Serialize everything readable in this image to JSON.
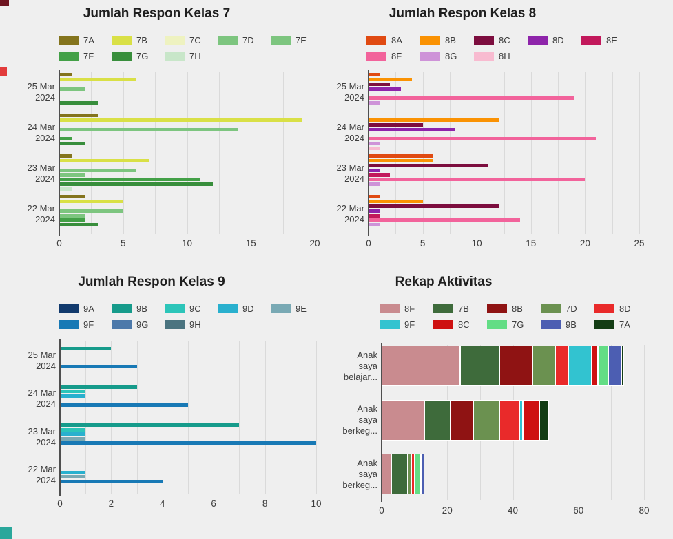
{
  "page": {
    "background": "#efefef"
  },
  "decorations": [
    {
      "name": "top-left-square",
      "color": "#6e1420"
    },
    {
      "name": "left-edge-square",
      "color": "#e23b3b"
    },
    {
      "name": "bottom-left-square",
      "color": "#2aa79b"
    }
  ],
  "chart_data": [
    {
      "id": "kelas7",
      "type": "bar",
      "orientation": "horizontal",
      "stacked": false,
      "title": "Jumlah Respon Kelas 7",
      "legend_position": "top",
      "grid": true,
      "categories": [
        "25 Mar 2024",
        "24 Mar 2024",
        "23 Mar 2024",
        "22 Mar 2024"
      ],
      "category_lines": [
        [
          "25 Mar",
          "2024"
        ],
        [
          "24 Mar",
          "2024"
        ],
        [
          "23 Mar",
          "2024"
        ],
        [
          "22 Mar",
          "2024"
        ]
      ],
      "series": [
        {
          "name": "7A",
          "color": "#84741d",
          "values": [
            1,
            3,
            1,
            2
          ]
        },
        {
          "name": "7B",
          "color": "#d9e046",
          "values": [
            6,
            19,
            7,
            5
          ]
        },
        {
          "name": "7C",
          "color": "#eef2c0",
          "values": [
            0,
            0,
            0,
            0
          ]
        },
        {
          "name": "7D",
          "color": "#7dc57f",
          "values": [
            2,
            14,
            6,
            5
          ]
        },
        {
          "name": "7E",
          "color": "#7dc57f",
          "values": [
            0,
            0,
            2,
            2
          ]
        },
        {
          "name": "7F",
          "color": "#43a047",
          "values": [
            0,
            1,
            11,
            2
          ]
        },
        {
          "name": "7G",
          "color": "#388e3c",
          "values": [
            3,
            2,
            12,
            3
          ]
        },
        {
          "name": "7H",
          "color": "#c8e6c9",
          "values": [
            0,
            0,
            1,
            0
          ]
        }
      ],
      "x_ticks": [
        0,
        5,
        10,
        15,
        20
      ],
      "x_max": 20,
      "grid_step": 2.5
    },
    {
      "id": "kelas8",
      "type": "bar",
      "orientation": "horizontal",
      "stacked": false,
      "title": "Jumlah Respon Kelas 8",
      "legend_position": "top",
      "grid": true,
      "categories": [
        "25 Mar 2024",
        "24 Mar 2024",
        "23 Mar 2024",
        "22 Mar 2024"
      ],
      "category_lines": [
        [
          "25 Mar",
          "2024"
        ],
        [
          "24 Mar",
          "2024"
        ],
        [
          "23 Mar",
          "2024"
        ],
        [
          "22 Mar",
          "2024"
        ]
      ],
      "series": [
        {
          "name": "8A",
          "color": "#e04a12",
          "values": [
            1,
            0,
            6,
            1
          ]
        },
        {
          "name": "8B",
          "color": "#fa9203",
          "values": [
            4,
            12,
            6,
            5
          ]
        },
        {
          "name": "8C",
          "color": "#7c0d3e",
          "values": [
            2,
            5,
            11,
            12
          ]
        },
        {
          "name": "8D",
          "color": "#8e24aa",
          "values": [
            3,
            8,
            1,
            1
          ]
        },
        {
          "name": "8E",
          "color": "#c2185b",
          "values": [
            0,
            0,
            2,
            1
          ]
        },
        {
          "name": "8F",
          "color": "#f2639b",
          "values": [
            19,
            21,
            20,
            14
          ]
        },
        {
          "name": "8G",
          "color": "#ce93d8",
          "values": [
            1,
            1,
            1,
            1
          ]
        },
        {
          "name": "8H",
          "color": "#f8bbd0",
          "values": [
            0,
            1,
            0,
            0
          ]
        }
      ],
      "x_ticks": [
        0,
        5,
        10,
        15,
        20,
        25
      ],
      "x_max": 25,
      "grid_step": 2.5
    },
    {
      "id": "kelas9",
      "type": "bar",
      "orientation": "horizontal",
      "stacked": false,
      "title": "Jumlah Respon Kelas 9",
      "legend_position": "top",
      "grid": true,
      "categories": [
        "25 Mar 2024",
        "24 Mar 2024",
        "23 Mar 2024",
        "22 Mar 2024"
      ],
      "category_lines": [
        [
          "25 Mar",
          "2024"
        ],
        [
          "24 Mar",
          "2024"
        ],
        [
          "23 Mar",
          "2024"
        ],
        [
          "22 Mar",
          "2024"
        ]
      ],
      "series": [
        {
          "name": "9A",
          "color": "#123a6d",
          "values": [
            0,
            0,
            0,
            0
          ]
        },
        {
          "name": "9B",
          "color": "#169b8b",
          "values": [
            2,
            3,
            7,
            0
          ]
        },
        {
          "name": "9C",
          "color": "#2cc5b9",
          "values": [
            0,
            1,
            1,
            0
          ]
        },
        {
          "name": "9D",
          "color": "#29b0ce",
          "values": [
            0,
            1,
            1,
            1
          ]
        },
        {
          "name": "9E",
          "color": "#79a9b4",
          "values": [
            0,
            0,
            1,
            1
          ]
        },
        {
          "name": "9F",
          "color": "#1879b5",
          "values": [
            3,
            5,
            10,
            4
          ]
        },
        {
          "name": "9G",
          "color": "#4d79aa",
          "values": [
            0,
            0,
            0,
            0
          ]
        },
        {
          "name": "9H",
          "color": "#4b7480",
          "values": [
            0,
            0,
            0,
            0
          ]
        }
      ],
      "x_ticks": [
        0,
        2,
        4,
        6,
        8,
        10
      ],
      "x_max": 10,
      "grid_step": 1
    },
    {
      "id": "rekap",
      "type": "bar",
      "orientation": "horizontal",
      "stacked": true,
      "title": "Rekap Aktivitas",
      "legend_position": "top",
      "grid": true,
      "categories": [
        "Anak saya belajar...",
        "Anak saya berkeg...",
        "Anak saya berkeg..."
      ],
      "category_lines": [
        [
          "Anak",
          "saya",
          "belajar..."
        ],
        [
          "Anak",
          "saya",
          "berkeg..."
        ],
        [
          "Anak",
          "saya",
          "berkeg..."
        ]
      ],
      "series": [
        {
          "name": "8F",
          "color": "#c98b8f",
          "values": [
            24,
            13,
            3
          ]
        },
        {
          "name": "7B",
          "color": "#3e6b3b",
          "values": [
            12,
            8,
            5
          ]
        },
        {
          "name": "8B",
          "color": "#8f1313",
          "values": [
            10,
            7,
            0
          ]
        },
        {
          "name": "7D",
          "color": "#6b9150",
          "values": [
            7,
            8,
            1
          ]
        },
        {
          "name": "8D",
          "color": "#e92a2a",
          "values": [
            4,
            6,
            1
          ]
        },
        {
          "name": "9F",
          "color": "#32c3d0",
          "values": [
            7,
            1,
            0
          ]
        },
        {
          "name": "8C",
          "color": "#ce1111",
          "values": [
            2,
            5,
            0
          ]
        },
        {
          "name": "7G",
          "color": "#63dd85",
          "values": [
            3,
            0,
            2
          ]
        },
        {
          "name": "9B",
          "color": "#4c5eb2",
          "values": [
            4,
            0,
            1
          ]
        },
        {
          "name": "7A",
          "color": "#133d14",
          "values": [
            1,
            3,
            0
          ]
        }
      ],
      "x_ticks": [
        0,
        20,
        40,
        60,
        80
      ],
      "x_max": 80,
      "grid_step": 10
    }
  ]
}
